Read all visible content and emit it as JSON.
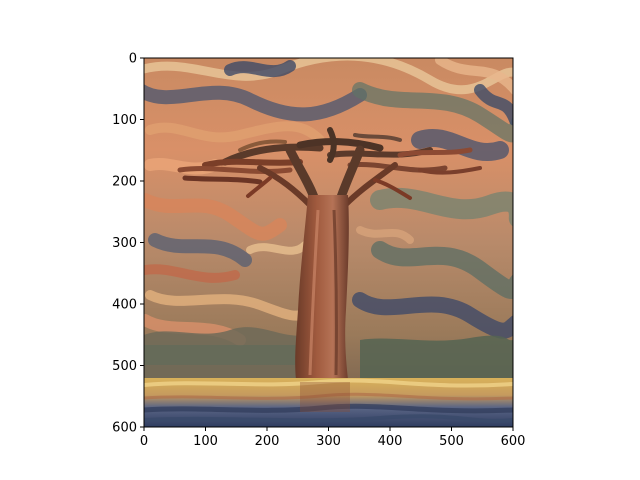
{
  "image": {
    "description_icon": "stylized-baobab-painting",
    "palette": {
      "sky_orange": "#d98a5c",
      "sky_cream": "#e8c79a",
      "storm_blue": "#4a5570",
      "teal_green": "#5f7366",
      "trunk_brown": "#8a4a32",
      "canopy_dark": "#5a3a2a",
      "water_gold": "#d9b25a",
      "water_blue": "#3e4e74"
    }
  },
  "axes": {
    "x_ticks": [
      "0",
      "100",
      "200",
      "300",
      "400",
      "500",
      "600"
    ],
    "y_ticks": [
      "0",
      "100",
      "200",
      "300",
      "400",
      "500",
      "600"
    ],
    "xlim": [
      0,
      600
    ],
    "ylim": [
      600,
      0
    ]
  }
}
